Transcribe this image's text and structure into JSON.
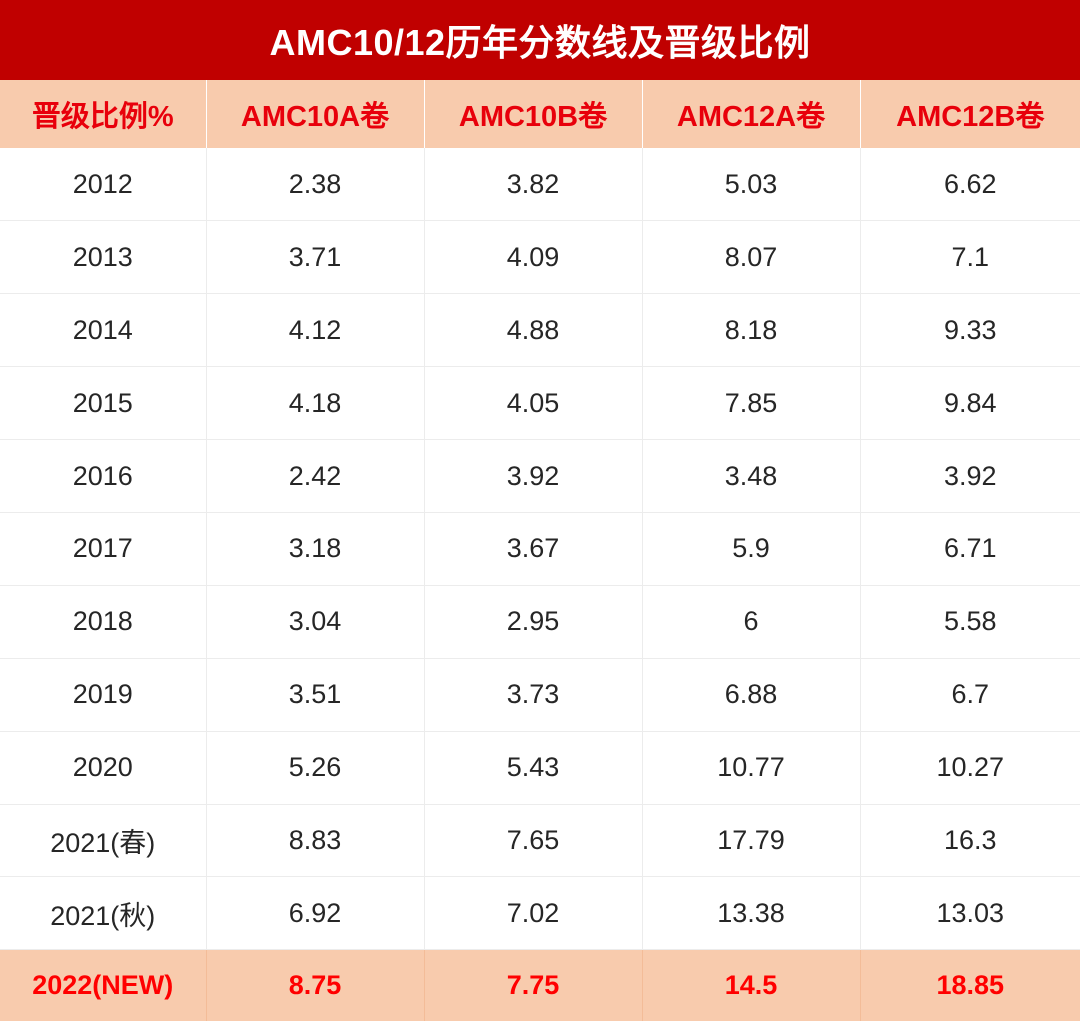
{
  "title": "AMC10/12历年分数线及晋级比例",
  "columns": [
    "晋级比例%",
    "AMC10A卷",
    "AMC10B卷",
    "AMC12A卷",
    "AMC12B卷"
  ],
  "rows": [
    [
      "2012",
      "2.38",
      "3.82",
      "5.03",
      "6.62"
    ],
    [
      "2013",
      "3.71",
      "4.09",
      "8.07",
      "7.1"
    ],
    [
      "2014",
      "4.12",
      "4.88",
      "8.18",
      "9.33"
    ],
    [
      "2015",
      "4.18",
      "4.05",
      "7.85",
      "9.84"
    ],
    [
      "2016",
      "2.42",
      "3.92",
      "3.48",
      "3.92"
    ],
    [
      "2017",
      "3.18",
      "3.67",
      "5.9",
      "6.71"
    ],
    [
      "2018",
      "3.04",
      "2.95",
      "6",
      "5.58"
    ],
    [
      "2019",
      "3.51",
      "3.73",
      "6.88",
      "6.7"
    ],
    [
      "2020",
      "5.26",
      "5.43",
      "10.77",
      "10.27"
    ],
    [
      "2021(春)",
      "8.83",
      "7.65",
      "17.79",
      "16.3"
    ],
    [
      "2021(秋)",
      "6.92",
      "7.02",
      "13.38",
      "13.03"
    ]
  ],
  "highlight_row": [
    "2022(NEW)",
    "8.75",
    "7.75",
    "14.5",
    "18.85"
  ],
  "colors": {
    "title_bg": "#c00000",
    "header_bg": "#f8cbad",
    "header_text": "#e8000b",
    "highlight_text": "#ff0000"
  }
}
